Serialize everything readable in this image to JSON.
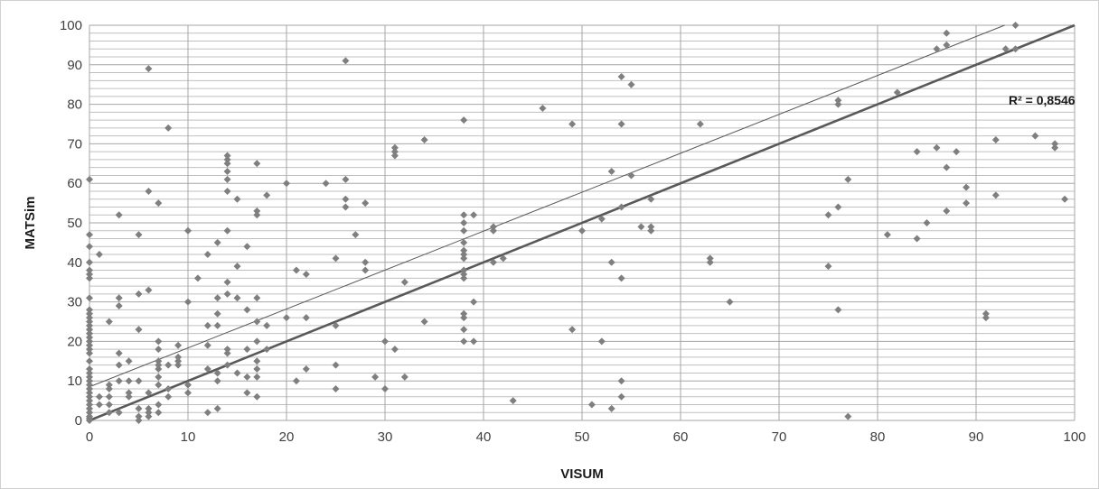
{
  "chart_data": {
    "type": "scatter",
    "xlabel": "VISUM",
    "ylabel": "MATSim",
    "xlim": [
      0,
      100
    ],
    "ylim": [
      0,
      100
    ],
    "x_ticks": [
      "0",
      "10",
      "20",
      "30",
      "40",
      "50",
      "60",
      "70",
      "80",
      "90",
      "100"
    ],
    "y_ticks": [
      "0",
      "10",
      "20",
      "30",
      "40",
      "50",
      "60",
      "70",
      "80",
      "90",
      "100"
    ],
    "grid": "minor horizontal every 2, major vertical every 10",
    "r_squared_label": "R² = 0,8546",
    "marker_color": "#7f7f7f",
    "reference_line": {
      "slope": 1,
      "intercept": 0,
      "color": "#595959"
    },
    "trend_line": {
      "slope": 0.985,
      "intercept": 8.5,
      "color": "#595959"
    },
    "points": [
      [
        0,
        0
      ],
      [
        0,
        0.5
      ],
      [
        0,
        1
      ],
      [
        0,
        2
      ],
      [
        0,
        3
      ],
      [
        0,
        4
      ],
      [
        0,
        5
      ],
      [
        0,
        6
      ],
      [
        0,
        7
      ],
      [
        0,
        8
      ],
      [
        0,
        9
      ],
      [
        0,
        10
      ],
      [
        0,
        11
      ],
      [
        0,
        12
      ],
      [
        0,
        13
      ],
      [
        0,
        15
      ],
      [
        0,
        17
      ],
      [
        0,
        18
      ],
      [
        0,
        19
      ],
      [
        0,
        20
      ],
      [
        0,
        21
      ],
      [
        0,
        22
      ],
      [
        0,
        23
      ],
      [
        0,
        24
      ],
      [
        0,
        25
      ],
      [
        0,
        26
      ],
      [
        0,
        27
      ],
      [
        0,
        28
      ],
      [
        0,
        31
      ],
      [
        0,
        36
      ],
      [
        0,
        37
      ],
      [
        0,
        38
      ],
      [
        0,
        40
      ],
      [
        0,
        44
      ],
      [
        0,
        47
      ],
      [
        0,
        61
      ],
      [
        1,
        4
      ],
      [
        1,
        6
      ],
      [
        1,
        42
      ],
      [
        2,
        2
      ],
      [
        2,
        4
      ],
      [
        2,
        6
      ],
      [
        2,
        8
      ],
      [
        2,
        9
      ],
      [
        2,
        25
      ],
      [
        3,
        2
      ],
      [
        3,
        10
      ],
      [
        3,
        14
      ],
      [
        3,
        17
      ],
      [
        3,
        29
      ],
      [
        3,
        31
      ],
      [
        3,
        52
      ],
      [
        4,
        6
      ],
      [
        4,
        7
      ],
      [
        4,
        10
      ],
      [
        4,
        15
      ],
      [
        5,
        0
      ],
      [
        5,
        1
      ],
      [
        5,
        3
      ],
      [
        5,
        10
      ],
      [
        5,
        23
      ],
      [
        5,
        32
      ],
      [
        5,
        47
      ],
      [
        6,
        1
      ],
      [
        6,
        2
      ],
      [
        6,
        3
      ],
      [
        6,
        7
      ],
      [
        6,
        33
      ],
      [
        6,
        58
      ],
      [
        6,
        89
      ],
      [
        7,
        2
      ],
      [
        7,
        4
      ],
      [
        7,
        9
      ],
      [
        7,
        11
      ],
      [
        7,
        13
      ],
      [
        7,
        14
      ],
      [
        7,
        15
      ],
      [
        7,
        18
      ],
      [
        7,
        20
      ],
      [
        7,
        55
      ],
      [
        8,
        6
      ],
      [
        8,
        8
      ],
      [
        8,
        14
      ],
      [
        8,
        74
      ],
      [
        9,
        14
      ],
      [
        9,
        15
      ],
      [
        9,
        16
      ],
      [
        9,
        19
      ],
      [
        10,
        7
      ],
      [
        10,
        9
      ],
      [
        10,
        30
      ],
      [
        10,
        48
      ],
      [
        11,
        36
      ],
      [
        12,
        2
      ],
      [
        12,
        13
      ],
      [
        12,
        19
      ],
      [
        12,
        24
      ],
      [
        12,
        42
      ],
      [
        13,
        3
      ],
      [
        13,
        10
      ],
      [
        13,
        12
      ],
      [
        13,
        24
      ],
      [
        13,
        27
      ],
      [
        13,
        31
      ],
      [
        13,
        45
      ],
      [
        14,
        14
      ],
      [
        14,
        17
      ],
      [
        14,
        18
      ],
      [
        14,
        32
      ],
      [
        14,
        35
      ],
      [
        14,
        48
      ],
      [
        14,
        58
      ],
      [
        14,
        61
      ],
      [
        14,
        63
      ],
      [
        14,
        65
      ],
      [
        14,
        66
      ],
      [
        14,
        67
      ],
      [
        15,
        12
      ],
      [
        15,
        31
      ],
      [
        15,
        39
      ],
      [
        15,
        56
      ],
      [
        16,
        7
      ],
      [
        16,
        11
      ],
      [
        16,
        18
      ],
      [
        16,
        28
      ],
      [
        16,
        44
      ],
      [
        17,
        6
      ],
      [
        17,
        11
      ],
      [
        17,
        13
      ],
      [
        17,
        15
      ],
      [
        17,
        20
      ],
      [
        17,
        25
      ],
      [
        17,
        31
      ],
      [
        17,
        52
      ],
      [
        17,
        53
      ],
      [
        17,
        65
      ],
      [
        18,
        18
      ],
      [
        18,
        24
      ],
      [
        18,
        57
      ],
      [
        20,
        26
      ],
      [
        20,
        60
      ],
      [
        21,
        10
      ],
      [
        21,
        38
      ],
      [
        22,
        13
      ],
      [
        22,
        26
      ],
      [
        22,
        37
      ],
      [
        24,
        60
      ],
      [
        25,
        8
      ],
      [
        25,
        14
      ],
      [
        25,
        24
      ],
      [
        25,
        41
      ],
      [
        26,
        54
      ],
      [
        26,
        56
      ],
      [
        26,
        61
      ],
      [
        26,
        91
      ],
      [
        27,
        47
      ],
      [
        28,
        38
      ],
      [
        28,
        40
      ],
      [
        28,
        55
      ],
      [
        29,
        11
      ],
      [
        30,
        8
      ],
      [
        30,
        20
      ],
      [
        31,
        18
      ],
      [
        31,
        67
      ],
      [
        31,
        68
      ],
      [
        31,
        69
      ],
      [
        32,
        11
      ],
      [
        32,
        35
      ],
      [
        34,
        25
      ],
      [
        34,
        71
      ],
      [
        38,
        20
      ],
      [
        38,
        23
      ],
      [
        38,
        26
      ],
      [
        38,
        27
      ],
      [
        38,
        36
      ],
      [
        38,
        37
      ],
      [
        38,
        38
      ],
      [
        38,
        41
      ],
      [
        38,
        42
      ],
      [
        38,
        43
      ],
      [
        38,
        45
      ],
      [
        38,
        48
      ],
      [
        38,
        50
      ],
      [
        38,
        52
      ],
      [
        38,
        76
      ],
      [
        39,
        20
      ],
      [
        39,
        30
      ],
      [
        39,
        52
      ],
      [
        41,
        40
      ],
      [
        41,
        48
      ],
      [
        41,
        49
      ],
      [
        42,
        41
      ],
      [
        43,
        5
      ],
      [
        46,
        79
      ],
      [
        49,
        23
      ],
      [
        49,
        75
      ],
      [
        50,
        48
      ],
      [
        51,
        4
      ],
      [
        52,
        20
      ],
      [
        52,
        51
      ],
      [
        53,
        3
      ],
      [
        53,
        40
      ],
      [
        53,
        63
      ],
      [
        54,
        6
      ],
      [
        54,
        10
      ],
      [
        54,
        36
      ],
      [
        54,
        54
      ],
      [
        54,
        75
      ],
      [
        54,
        87
      ],
      [
        55,
        62
      ],
      [
        55,
        85
      ],
      [
        56,
        49
      ],
      [
        57,
        48
      ],
      [
        57,
        49
      ],
      [
        57,
        56
      ],
      [
        62,
        75
      ],
      [
        63,
        40
      ],
      [
        63,
        41
      ],
      [
        65,
        30
      ],
      [
        75,
        39
      ],
      [
        75,
        52
      ],
      [
        76,
        28
      ],
      [
        76,
        54
      ],
      [
        76,
        80
      ],
      [
        76,
        81
      ],
      [
        77,
        1
      ],
      [
        77,
        61
      ],
      [
        81,
        47
      ],
      [
        82,
        83
      ],
      [
        84,
        46
      ],
      [
        84,
        68
      ],
      [
        85,
        50
      ],
      [
        86,
        69
      ],
      [
        86,
        94
      ],
      [
        87,
        53
      ],
      [
        87,
        64
      ],
      [
        87,
        95
      ],
      [
        87,
        98
      ],
      [
        88,
        68
      ],
      [
        89,
        55
      ],
      [
        89,
        59
      ],
      [
        91,
        26
      ],
      [
        91,
        27
      ],
      [
        92,
        57
      ],
      [
        92,
        71
      ],
      [
        93,
        94
      ],
      [
        94,
        94
      ],
      [
        94,
        100
      ],
      [
        96,
        72
      ],
      [
        98,
        69
      ],
      [
        98,
        70
      ],
      [
        99,
        56
      ]
    ]
  }
}
